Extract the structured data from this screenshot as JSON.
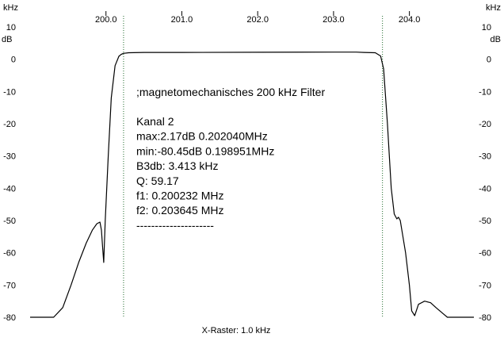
{
  "chart_data": {
    "type": "line",
    "x_unit": "kHz",
    "y_unit": "dB",
    "xlabel": "X-Raster: 1.0 kHz",
    "ylabel": "",
    "xlim": [
      199.0,
      204.85
    ],
    "ylim": [
      -80,
      10
    ],
    "x_ticks": [
      {
        "v": 200.0,
        "label": "200.0"
      },
      {
        "v": 201.0,
        "label": "201.0"
      },
      {
        "v": 202.0,
        "label": "202.0"
      },
      {
        "v": 203.0,
        "label": "203.0"
      },
      {
        "v": 204.0,
        "label": "204.0"
      }
    ],
    "y_ticks": [
      {
        "v": 10,
        "label": "10"
      },
      {
        "v": 0,
        "label": "0"
      },
      {
        "v": -10,
        "label": "-10"
      },
      {
        "v": -20,
        "label": "-20"
      },
      {
        "v": -30,
        "label": "-30"
      },
      {
        "v": -40,
        "label": "-40"
      },
      {
        "v": -50,
        "label": "-50"
      },
      {
        "v": -60,
        "label": "-60"
      },
      {
        "v": -70,
        "label": "-70"
      },
      {
        "v": -80,
        "label": "-80"
      }
    ],
    "markers": [
      200.232,
      203.645
    ],
    "grid": false,
    "series": [
      {
        "name": "Kanal 2",
        "color": "#000000",
        "x": [
          199.0,
          199.31,
          199.43,
          199.54,
          199.64,
          199.74,
          199.82,
          199.88,
          199.92,
          199.94,
          199.955,
          199.97,
          199.99,
          200.03,
          200.07,
          200.12,
          200.17,
          200.2,
          200.23,
          200.3,
          200.5,
          201.0,
          202.0,
          203.0,
          203.3,
          203.4,
          203.55,
          203.62,
          203.66,
          203.71,
          203.76,
          203.8,
          203.835,
          203.855,
          203.88,
          203.9,
          203.95,
          204.0,
          204.03,
          204.07,
          204.12,
          204.2,
          204.28,
          204.35,
          204.45,
          204.5,
          204.6,
          204.85
        ],
        "y": [
          -80,
          -80,
          -77,
          -70,
          -63,
          -57,
          -53,
          -51,
          -50.5,
          -53,
          -58,
          -63,
          -50,
          -30,
          -12,
          -2,
          0.9,
          1.5,
          1.8,
          2.0,
          2.1,
          2.1,
          2.15,
          2.2,
          2.2,
          2.1,
          2.0,
          1.0,
          -3,
          -20,
          -40,
          -48,
          -49.5,
          -49,
          -50,
          -53,
          -60,
          -70,
          -78,
          -79.5,
          -76,
          -75,
          -75.5,
          -77,
          -79,
          -80,
          -80,
          -80
        ]
      }
    ],
    "annotations": [
      ";magnetomechanisches 200 kHz Filter",
      "Kanal 2",
      "max:2.17dB 0.202040MHz",
      "min:-80.45dB 0.198951MHz",
      "B3db: 3.413 kHz",
      "Q: 59.17",
      "f1: 0.200232 MHz",
      "f2: 0.203645 MHz",
      "---------------------"
    ]
  }
}
